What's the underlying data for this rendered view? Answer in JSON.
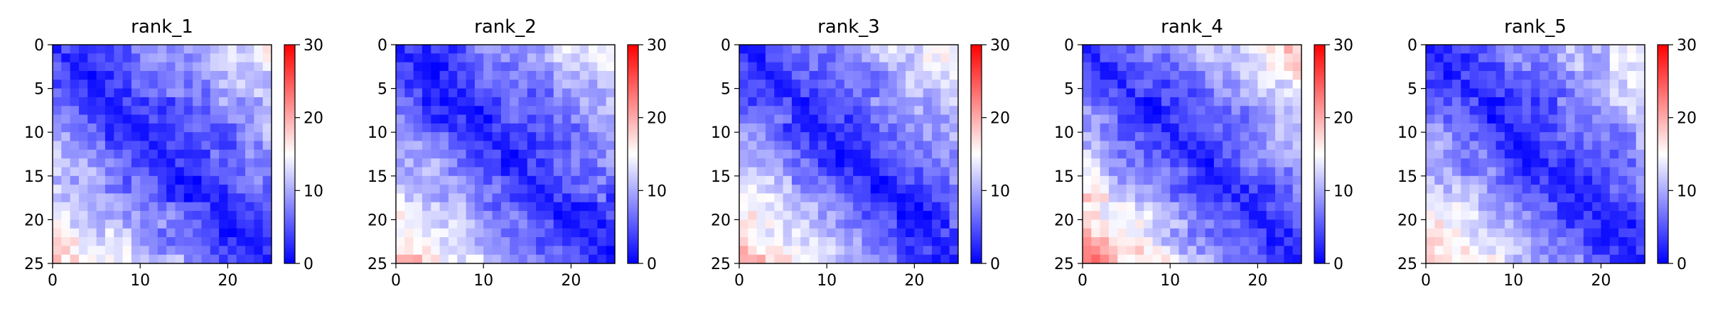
{
  "chart_data": [
    {
      "type": "heatmap",
      "title": "rank_1",
      "n": 25,
      "xlim": [
        0,
        25
      ],
      "ylim": [
        25,
        0
      ],
      "x_ticks": [
        0,
        10,
        20
      ],
      "y_ticks": [
        0,
        5,
        10,
        15,
        20,
        25
      ],
      "colorbar": {
        "range": [
          0,
          30
        ],
        "ticks": [
          0,
          10,
          20,
          30
        ],
        "colormap": "bwr"
      },
      "value_model": {
        "diag": 1.0,
        "slope": 0.57,
        "exponent": 0.95,
        "asymmetry": 1.0,
        "near_threshold": 2
      }
    },
    {
      "type": "heatmap",
      "title": "rank_2",
      "n": 25,
      "xlim": [
        0,
        25
      ],
      "ylim": [
        25,
        0
      ],
      "x_ticks": [
        0,
        10,
        20
      ],
      "y_ticks": [
        0,
        5,
        10,
        15,
        20,
        25
      ],
      "colorbar": {
        "range": [
          0,
          30
        ],
        "ticks": [
          0,
          10,
          20,
          30
        ],
        "colormap": "bwr"
      },
      "value_model": {
        "diag": 1.0,
        "slope": 0.55,
        "exponent": 0.97,
        "asymmetry": 1.0,
        "near_threshold": 2
      }
    },
    {
      "type": "heatmap",
      "title": "rank_3",
      "n": 25,
      "xlim": [
        0,
        25
      ],
      "ylim": [
        25,
        0
      ],
      "x_ticks": [
        0,
        10,
        20
      ],
      "y_ticks": [
        0,
        5,
        10,
        15,
        20,
        25
      ],
      "colorbar": {
        "range": [
          0,
          30
        ],
        "ticks": [
          0,
          10,
          20,
          30
        ],
        "colormap": "bwr"
      },
      "value_model": {
        "diag": 1.0,
        "slope": 0.58,
        "exponent": 1.0,
        "asymmetry": 1.0,
        "near_threshold": 2
      }
    },
    {
      "type": "heatmap",
      "title": "rank_4",
      "n": 25,
      "xlim": [
        0,
        25
      ],
      "ylim": [
        25,
        0
      ],
      "x_ticks": [
        0,
        10,
        20
      ],
      "y_ticks": [
        0,
        5,
        10,
        15,
        20,
        25
      ],
      "colorbar": {
        "range": [
          0,
          30
        ],
        "ticks": [
          0,
          10,
          20,
          30
        ],
        "colormap": "bwr"
      },
      "value_model": {
        "diag": 1.0,
        "slope": 0.6,
        "exponent": 1.02,
        "asymmetry": 1.0,
        "near_threshold": 2
      }
    },
    {
      "type": "heatmap",
      "title": "rank_5",
      "n": 25,
      "xlim": [
        0,
        25
      ],
      "ylim": [
        25,
        0
      ],
      "x_ticks": [
        0,
        10,
        20
      ],
      "y_ticks": [
        0,
        5,
        10,
        15,
        20,
        25
      ],
      "colorbar": {
        "range": [
          0,
          30
        ],
        "ticks": [
          0,
          10,
          20,
          30
        ],
        "colormap": "bwr"
      },
      "value_model": {
        "diag": 1.0,
        "slope": 0.56,
        "exponent": 0.98,
        "asymmetry": 1.0,
        "near_threshold": 2
      }
    }
  ]
}
